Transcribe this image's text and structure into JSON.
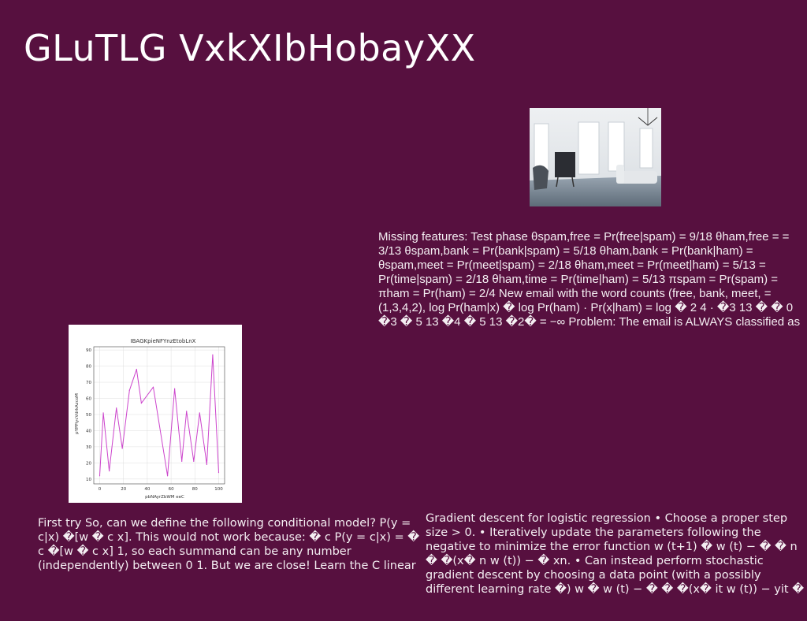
{
  "slide": {
    "title": "GLuTLG VxkXIbHobayXX"
  },
  "photo": {
    "icon": "living-room-photo"
  },
  "text_blocks": {
    "features": "Missing features: Test phase θspam,free = Pr(free|spam) = 9/18 θham,free = = 3/13 θspam,bank = Pr(bank|spam) = 5/18 θham,bank = Pr(bank|ham) = θspam,meet = Pr(meet|spam) = 2/18 θham,meet = Pr(meet|ham) = 5/13 = Pr(time|spam) = 2/18 θham,time = Pr(time|ham) = 5/13 πspam = Pr(spam) = πham = Pr(ham) = 2/4 New email with the word counts (free, bank, meet, = (1,3,4,2), log Pr(ham|x) � log Pr(ham) · Pr(x|ham) = log � 2 4 · �3 13 � � 0 �3 � 5 13 �4 � 5 13 �2� = −∞ Problem: The email is ALWAYS classified as",
    "first_try": "First try So, can we define the following conditional model? P(y = c|x) �[w � c x]. This would not work because: � c P(y = c|x) = � c �[w � c x] 1, so each summand can be any number (independently) between 0 1. But we are close! Learn the C linear models jointly to ensure this",
    "gradient": "Gradient descent for logistic regression • Choose a proper step size > 0. • Iteratively update the parameters following the negative to minimize the error function w (t+1) � w (t) − � � n � �(x� n w (t)) − � xn. • Can instead perform stochastic gradient descent by choosing a data point (with a possibly different learning rate �) w � w (t) − � � �(x� it w (t)) − yit � xit where it is drawn uniformly at"
  },
  "chart_data": {
    "type": "line",
    "title": "IBAGKpieNFYnzEtobLnX",
    "xlabel": "pbNAyrZbWM eeC",
    "ylabel": "pYPPiycVdrkAzcoM",
    "xlim": [
      -5,
      105
    ],
    "ylim": [
      7,
      92
    ],
    "x_ticks": [
      0,
      20,
      40,
      60,
      80,
      100
    ],
    "y_ticks": [
      10,
      20,
      30,
      40,
      50,
      60,
      70,
      80,
      90
    ],
    "grid": true,
    "line_color": "#cc44cc",
    "x": [
      0,
      3,
      8,
      14,
      19,
      25,
      31,
      35,
      45,
      57,
      63,
      69,
      73,
      79,
      84,
      90,
      95,
      100
    ],
    "y": [
      12,
      51,
      15,
      54,
      29,
      65,
      78,
      57,
      67,
      12,
      66,
      21,
      52,
      21,
      51,
      19,
      87,
      14
    ]
  }
}
